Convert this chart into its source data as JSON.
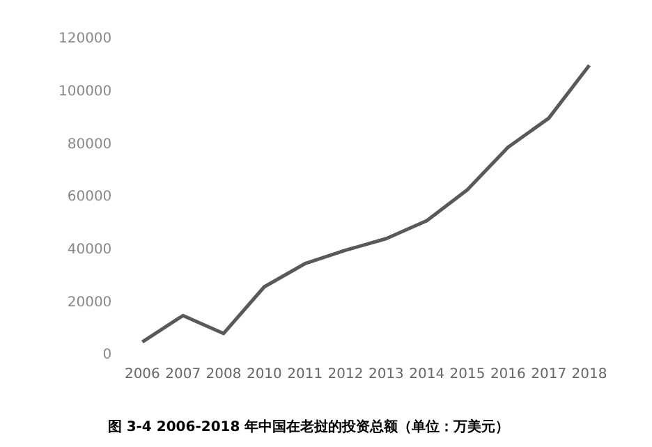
{
  "chart_data": {
    "type": "line",
    "title": "图 3-4 2006-2018 年中国在老挝的投资总额（单位：万美元）",
    "categories": [
      "2006",
      "2007",
      "2008",
      "2010",
      "2011",
      "2012",
      "2013",
      "2014",
      "2015",
      "2016",
      "2017",
      "2018"
    ],
    "series": [
      {
        "color": "#595959",
        "values": [
          5000,
          15000,
          8200,
          25900,
          34700,
          39800,
          44200,
          51000,
          62800,
          78900,
          89900,
          110000
        ]
      }
    ],
    "ylim": [
      0,
      120000
    ],
    "yticks": [
      0,
      20000,
      40000,
      60000,
      80000,
      100000,
      120000
    ],
    "grid": false,
    "legend": false,
    "marker": "none",
    "line_style": "solid"
  }
}
